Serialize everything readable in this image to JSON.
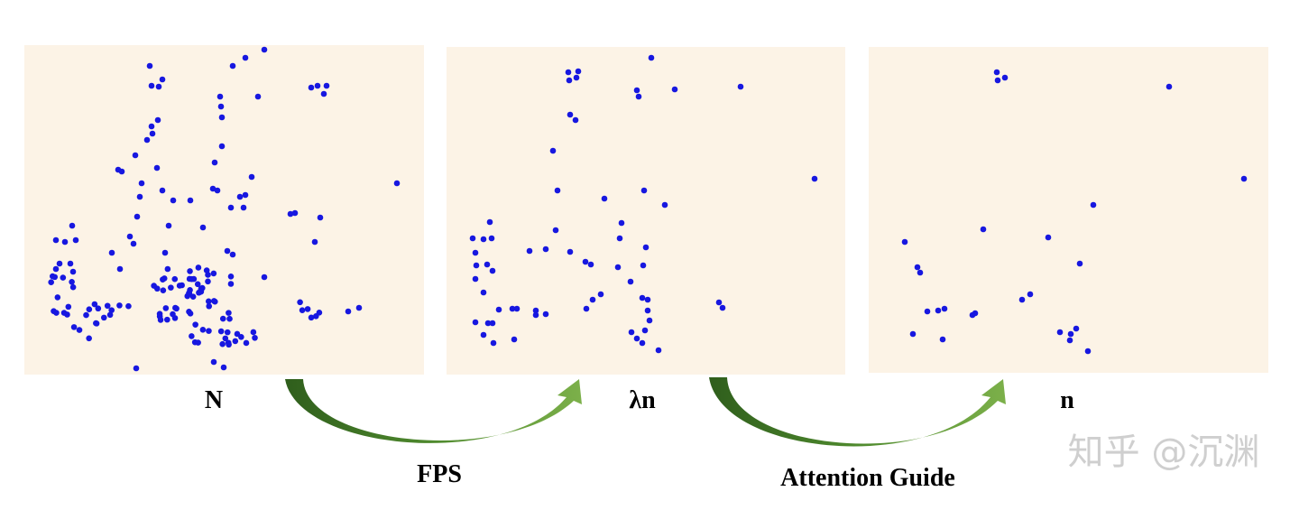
{
  "labels": {
    "panel_1": "N",
    "panel_2": "λn",
    "panel_3": "n"
  },
  "arrows": {
    "first": "FPS",
    "second": "Attention Guide"
  },
  "watermark": "知乎 @沉渊"
}
